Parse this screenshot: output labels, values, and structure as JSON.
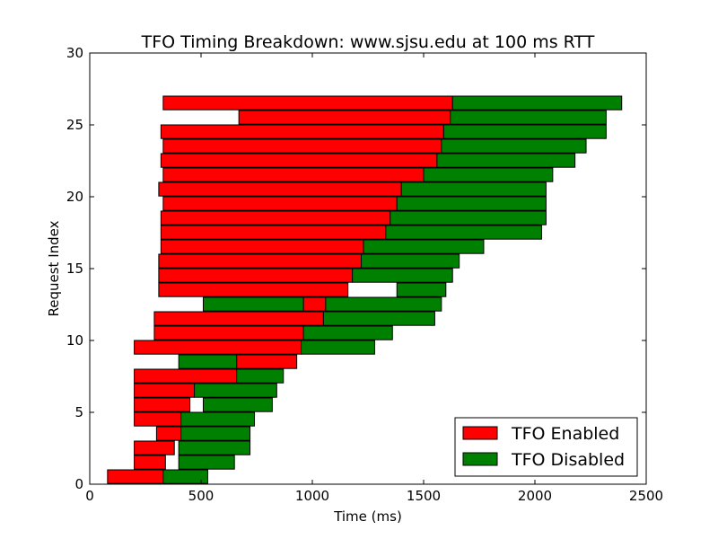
{
  "chart_data": {
    "type": "bar",
    "orientation": "horizontal",
    "title": "TFO Timing Breakdown: www.sjsu.edu at 100 ms RTT",
    "xlabel": "Time (ms)",
    "ylabel": "Request Index",
    "xlim": [
      0,
      2500
    ],
    "ylim": [
      0,
      30
    ],
    "x_ticks": [
      "0",
      "500",
      "1000",
      "1500",
      "2000",
      "2500"
    ],
    "y_ticks": [
      "0",
      "5",
      "10",
      "15",
      "20",
      "25",
      "30"
    ],
    "grid": false,
    "legend": {
      "position": "bottom-right",
      "entries": [
        "TFO Enabled",
        "TFO Disabled"
      ]
    },
    "colors": {
      "enabled": "#ff0000",
      "disabled": "#008000"
    },
    "series": [
      {
        "name": "TFO Enabled",
        "bars": [
          [
            1,
            80,
            330
          ],
          [
            2,
            200,
            340
          ],
          [
            3,
            200,
            380
          ],
          [
            4,
            300,
            410
          ],
          [
            5,
            200,
            410
          ],
          [
            6,
            200,
            450
          ],
          [
            7,
            200,
            470
          ],
          [
            8,
            200,
            660
          ],
          [
            9,
            660,
            930
          ],
          [
            10,
            200,
            950
          ],
          [
            11,
            290,
            960
          ],
          [
            12,
            290,
            1050
          ],
          [
            13,
            960,
            1060
          ],
          [
            14,
            310,
            1160
          ],
          [
            15,
            310,
            1180
          ],
          [
            16,
            310,
            1220
          ],
          [
            17,
            320,
            1230
          ],
          [
            18,
            320,
            1330
          ],
          [
            19,
            320,
            1350
          ],
          [
            20,
            330,
            1380
          ],
          [
            21,
            310,
            1400
          ],
          [
            22,
            330,
            1500
          ],
          [
            23,
            320,
            1560
          ],
          [
            24,
            330,
            1580
          ],
          [
            25,
            320,
            1590
          ],
          [
            26,
            670,
            1620
          ],
          [
            27,
            330,
            1630
          ]
        ]
      },
      {
        "name": "TFO Disabled",
        "bars": [
          [
            1,
            330,
            530
          ],
          [
            2,
            400,
            650
          ],
          [
            3,
            400,
            720
          ],
          [
            4,
            410,
            720
          ],
          [
            5,
            410,
            740
          ],
          [
            6,
            510,
            820
          ],
          [
            7,
            470,
            840
          ],
          [
            8,
            660,
            870
          ],
          [
            9,
            400,
            660
          ],
          [
            10,
            950,
            1280
          ],
          [
            11,
            960,
            1360
          ],
          [
            12,
            1050,
            1550
          ],
          [
            13,
            510,
            960
          ],
          [
            13,
            1060,
            1580
          ],
          [
            14,
            1380,
            1600
          ],
          [
            15,
            1180,
            1630
          ],
          [
            16,
            1220,
            1660
          ],
          [
            17,
            1230,
            1770
          ],
          [
            18,
            1330,
            2030
          ],
          [
            19,
            1350,
            2050
          ],
          [
            20,
            1380,
            2050
          ],
          [
            21,
            1400,
            2050
          ],
          [
            22,
            1500,
            2080
          ],
          [
            23,
            1560,
            2180
          ],
          [
            24,
            1580,
            2230
          ],
          [
            25,
            1590,
            2320
          ],
          [
            26,
            1620,
            2320
          ],
          [
            27,
            1630,
            2390
          ]
        ]
      }
    ]
  }
}
